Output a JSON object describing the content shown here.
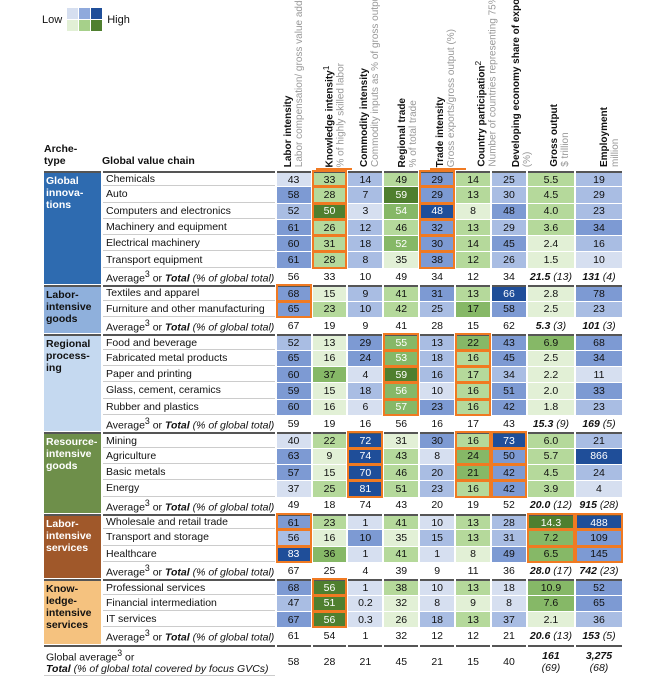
{
  "legend": {
    "low": "Low",
    "high": "High",
    "blue": [
      "#d6dff0",
      "#8fa9dc",
      "#1f4e99"
    ],
    "green": [
      "#e2f0d6",
      "#a6d08a",
      "#4f7f2f"
    ]
  },
  "header": {
    "archetype": "Arche-\ntype",
    "gvc": "Global value chain",
    "columns": [
      {
        "title": "Labor intensity",
        "sub": "Labor compensation/ gross value added (%)",
        "sup": "",
        "color": "blue"
      },
      {
        "title": "Knowledge intensity",
        "sub": "% of highly skilled labor",
        "sup": "1",
        "color": "green"
      },
      {
        "title": "Commodity intensity",
        "sub": "Commodity inputs as % of gross output",
        "sup": "",
        "color": "blue"
      },
      {
        "title": "Regional trade",
        "sub": "% of total trade",
        "sup": "",
        "color": "green"
      },
      {
        "title": "Trade intensity",
        "sub": "Gross exports/gross output (%)",
        "sup": "",
        "color": "blue"
      },
      {
        "title": "Country participation",
        "sub": "Number of countries representing 75% of total exports",
        "sup": "2",
        "color": "green"
      },
      {
        "title": "Developing economy share of exports",
        "sub": "(%)",
        "sup": "",
        "color": "blue"
      },
      {
        "title": "Gross output",
        "sub": "$ trillion",
        "sup": "",
        "color": "green"
      },
      {
        "title": "Employment",
        "sub": "million",
        "sup": "",
        "color": "blue"
      }
    ]
  },
  "colors": {
    "blue": [
      "#d6dff0",
      "#a9bde3",
      "#7d9ad3",
      "#1f4e99"
    ],
    "green": [
      "#e2f0d6",
      "#b5d99b",
      "#86b867",
      "#4f7f2f"
    ],
    "highlight": "#f07a22"
  },
  "avg_label": {
    "a": "Average",
    "sup": "3",
    "b": " or ",
    "c": "Total",
    "d": " (% of global total)"
  },
  "groups": [
    {
      "name": "Global innova-tions",
      "bg": "#2e6bb0",
      "fg": "#fff",
      "highlight_cols": [
        1,
        4
      ],
      "rows": [
        {
          "name": "Chemicals",
          "values": [
            "43",
            "33",
            "14",
            "49",
            "29",
            "14",
            "25",
            "5.5",
            "19"
          ],
          "levels": [
            1,
            2,
            2,
            2,
            3,
            2,
            2,
            2,
            2
          ]
        },
        {
          "name": "Auto",
          "values": [
            "58",
            "28",
            "7",
            "59",
            "29",
            "13",
            "30",
            "4.5",
            "29"
          ],
          "levels": [
            3,
            2,
            2,
            4,
            3,
            2,
            2,
            2,
            2
          ]
        },
        {
          "name": "Computers and electronics",
          "values": [
            "52",
            "50",
            "3",
            "54",
            "48",
            "8",
            "48",
            "4.0",
            "23"
          ],
          "levels": [
            2,
            4,
            1,
            3,
            4,
            1,
            3,
            2,
            2
          ]
        },
        {
          "name": "Machinery and equipment",
          "values": [
            "61",
            "26",
            "12",
            "46",
            "32",
            "13",
            "29",
            "3.6",
            "34"
          ],
          "levels": [
            3,
            2,
            2,
            2,
            3,
            2,
            2,
            2,
            3
          ]
        },
        {
          "name": "Electrical machinery",
          "values": [
            "60",
            "31",
            "18",
            "52",
            "30",
            "14",
            "45",
            "2.4",
            "16"
          ],
          "levels": [
            3,
            2,
            2,
            3,
            3,
            2,
            3,
            1,
            2
          ]
        },
        {
          "name": "Transport equipment",
          "values": [
            "61",
            "28",
            "8",
            "35",
            "38",
            "12",
            "26",
            "1.5",
            "10"
          ],
          "levels": [
            3,
            2,
            2,
            1,
            3,
            2,
            2,
            1,
            1
          ]
        }
      ],
      "avg": [
        "56",
        "33",
        "10",
        "49",
        "34",
        "12",
        "34"
      ],
      "total_go": "21.5",
      "total_go_pct": "(13)",
      "total_emp": "131",
      "total_emp_pct": "(4)"
    },
    {
      "name": "Labor-intensive goods",
      "bg": "#8fb0dc",
      "fg": "#111",
      "highlight_cols": [
        0
      ],
      "rows": [
        {
          "name": "Textiles and apparel",
          "values": [
            "68",
            "15",
            "9",
            "41",
            "31",
            "13",
            "66",
            "2.8",
            "78"
          ],
          "levels": [
            3,
            1,
            2,
            2,
            3,
            2,
            4,
            1,
            3
          ]
        },
        {
          "name": "Furniture and other manufacturing",
          "values": [
            "65",
            "23",
            "10",
            "42",
            "25",
            "17",
            "58",
            "2.5",
            "23"
          ],
          "levels": [
            3,
            2,
            2,
            2,
            2,
            3,
            3,
            1,
            2
          ]
        }
      ],
      "avg": [
        "67",
        "19",
        "9",
        "41",
        "28",
        "15",
        "62"
      ],
      "total_go": "5.3",
      "total_go_pct": "(3)",
      "total_emp": "101",
      "total_emp_pct": "(3)"
    },
    {
      "name": "Regional process-ing",
      "bg": "#c5d9f0",
      "fg": "#111",
      "highlight_cols": [
        3,
        5
      ],
      "rows": [
        {
          "name": "Food and beverage",
          "values": [
            "52",
            "13",
            "29",
            "55",
            "13",
            "22",
            "43",
            "6.9",
            "68"
          ],
          "levels": [
            2,
            1,
            3,
            3,
            2,
            3,
            3,
            3,
            3
          ]
        },
        {
          "name": "Fabricated metal products",
          "values": [
            "65",
            "16",
            "24",
            "53",
            "18",
            "16",
            "45",
            "2.5",
            "34"
          ],
          "levels": [
            3,
            1,
            3,
            3,
            2,
            2,
            3,
            1,
            3
          ]
        },
        {
          "name": "Paper and printing",
          "values": [
            "60",
            "37",
            "4",
            "59",
            "16",
            "17",
            "34",
            "2.2",
            "11"
          ],
          "levels": [
            3,
            3,
            1,
            4,
            2,
            2,
            2,
            1,
            1
          ]
        },
        {
          "name": "Glass, cement, ceramics",
          "values": [
            "59",
            "15",
            "18",
            "56",
            "10",
            "16",
            "51",
            "2.0",
            "33"
          ],
          "levels": [
            3,
            1,
            2,
            3,
            1,
            2,
            3,
            1,
            3
          ]
        },
        {
          "name": "Rubber and plastics",
          "values": [
            "60",
            "16",
            "6",
            "57",
            "23",
            "16",
            "42",
            "1.8",
            "23"
          ],
          "levels": [
            3,
            1,
            1,
            3,
            3,
            2,
            3,
            1,
            2
          ]
        }
      ],
      "avg": [
        "59",
        "19",
        "16",
        "56",
        "16",
        "17",
        "43"
      ],
      "total_go": "15.3",
      "total_go_pct": "(9)",
      "total_emp": "169",
      "total_emp_pct": "(5)"
    },
    {
      "name": "Resource-intensive goods",
      "bg": "#6e8f4a",
      "fg": "#fff",
      "highlight_cols": [
        2,
        5,
        6
      ],
      "rows": [
        {
          "name": "Mining",
          "values": [
            "40",
            "22",
            "72",
            "31",
            "30",
            "16",
            "73",
            "6.0",
            "21"
          ],
          "levels": [
            1,
            2,
            4,
            1,
            3,
            2,
            4,
            2,
            2
          ]
        },
        {
          "name": "Agriculture",
          "values": [
            "63",
            "9",
            "74",
            "43",
            "8",
            "24",
            "50",
            "5.7",
            "866"
          ],
          "levels": [
            3,
            1,
            4,
            2,
            1,
            3,
            3,
            2,
            4
          ]
        },
        {
          "name": "Basic metals",
          "values": [
            "57",
            "15",
            "70",
            "46",
            "20",
            "21",
            "42",
            "4.5",
            "24"
          ],
          "levels": [
            3,
            1,
            4,
            2,
            2,
            3,
            3,
            2,
            2
          ]
        },
        {
          "name": "Energy",
          "values": [
            "37",
            "25",
            "81",
            "51",
            "23",
            "16",
            "42",
            "3.9",
            "4"
          ],
          "levels": [
            1,
            2,
            4,
            2,
            2,
            2,
            3,
            2,
            1
          ]
        }
      ],
      "avg": [
        "49",
        "18",
        "74",
        "43",
        "20",
        "19",
        "52"
      ],
      "total_go": "20.0",
      "total_go_pct": "(12)",
      "total_emp": "915",
      "total_emp_pct": "(28)"
    },
    {
      "name": "Labor-intensive services",
      "bg": "#a0582a",
      "fg": "#fff",
      "highlight_cols": [
        0,
        7,
        8
      ],
      "rows": [
        {
          "name": "Wholesale and retail trade",
          "values": [
            "61",
            "23",
            "1",
            "41",
            "10",
            "13",
            "28",
            "14.3",
            "488"
          ],
          "levels": [
            3,
            2,
            1,
            2,
            1,
            2,
            2,
            4,
            4
          ]
        },
        {
          "name": "Transport and storage",
          "values": [
            "56",
            "16",
            "10",
            "35",
            "15",
            "13",
            "31",
            "7.2",
            "109"
          ],
          "levels": [
            2,
            1,
            3,
            1,
            2,
            2,
            2,
            3,
            3
          ]
        },
        {
          "name": "Healthcare",
          "values": [
            "83",
            "36",
            "1",
            "41",
            "1",
            "8",
            "49",
            "6.5",
            "145"
          ],
          "levels": [
            4,
            3,
            1,
            2,
            1,
            1,
            3,
            3,
            3
          ]
        }
      ],
      "avg": [
        "67",
        "25",
        "4",
        "39",
        "9",
        "11",
        "36"
      ],
      "total_go": "28.0",
      "total_go_pct": "(17)",
      "total_emp": "742",
      "total_emp_pct": "(23)"
    },
    {
      "name": "Know-ledge-intensive services",
      "bg": "#f5c27f",
      "fg": "#111",
      "highlight_cols": [
        1
      ],
      "rows": [
        {
          "name": "Professional services",
          "values": [
            "68",
            "56",
            "1",
            "38",
            "10",
            "13",
            "18",
            "10.9",
            "52"
          ],
          "levels": [
            3,
            4,
            1,
            2,
            1,
            2,
            1,
            3,
            3
          ]
        },
        {
          "name": "Financial intermediation",
          "values": [
            "47",
            "51",
            "0.2",
            "32",
            "8",
            "9",
            "8",
            "7.6",
            "65"
          ],
          "levels": [
            2,
            4,
            1,
            1,
            1,
            1,
            1,
            3,
            3
          ]
        },
        {
          "name": "IT services",
          "values": [
            "67",
            "56",
            "0.3",
            "26",
            "18",
            "13",
            "37",
            "2.1",
            "36"
          ],
          "levels": [
            3,
            4,
            1,
            1,
            2,
            2,
            2,
            1,
            2
          ]
        }
      ],
      "avg": [
        "61",
        "54",
        "1",
        "32",
        "12",
        "12",
        "21"
      ],
      "total_go": "20.6",
      "total_go_pct": "(13)",
      "total_emp": "153",
      "total_emp_pct": "(5)"
    }
  ],
  "global": {
    "line1": "Global average",
    "sup": "3",
    "line1b": " or",
    "line2a": "Total",
    "line2b": " (% of global total covered by focus GVCs)",
    "values": [
      "58",
      "28",
      "21",
      "45",
      "21",
      "15",
      "40"
    ],
    "total_go": "161",
    "total_go_pct": "(69)",
    "total_emp": "3,275",
    "total_emp_pct": "(68)"
  }
}
